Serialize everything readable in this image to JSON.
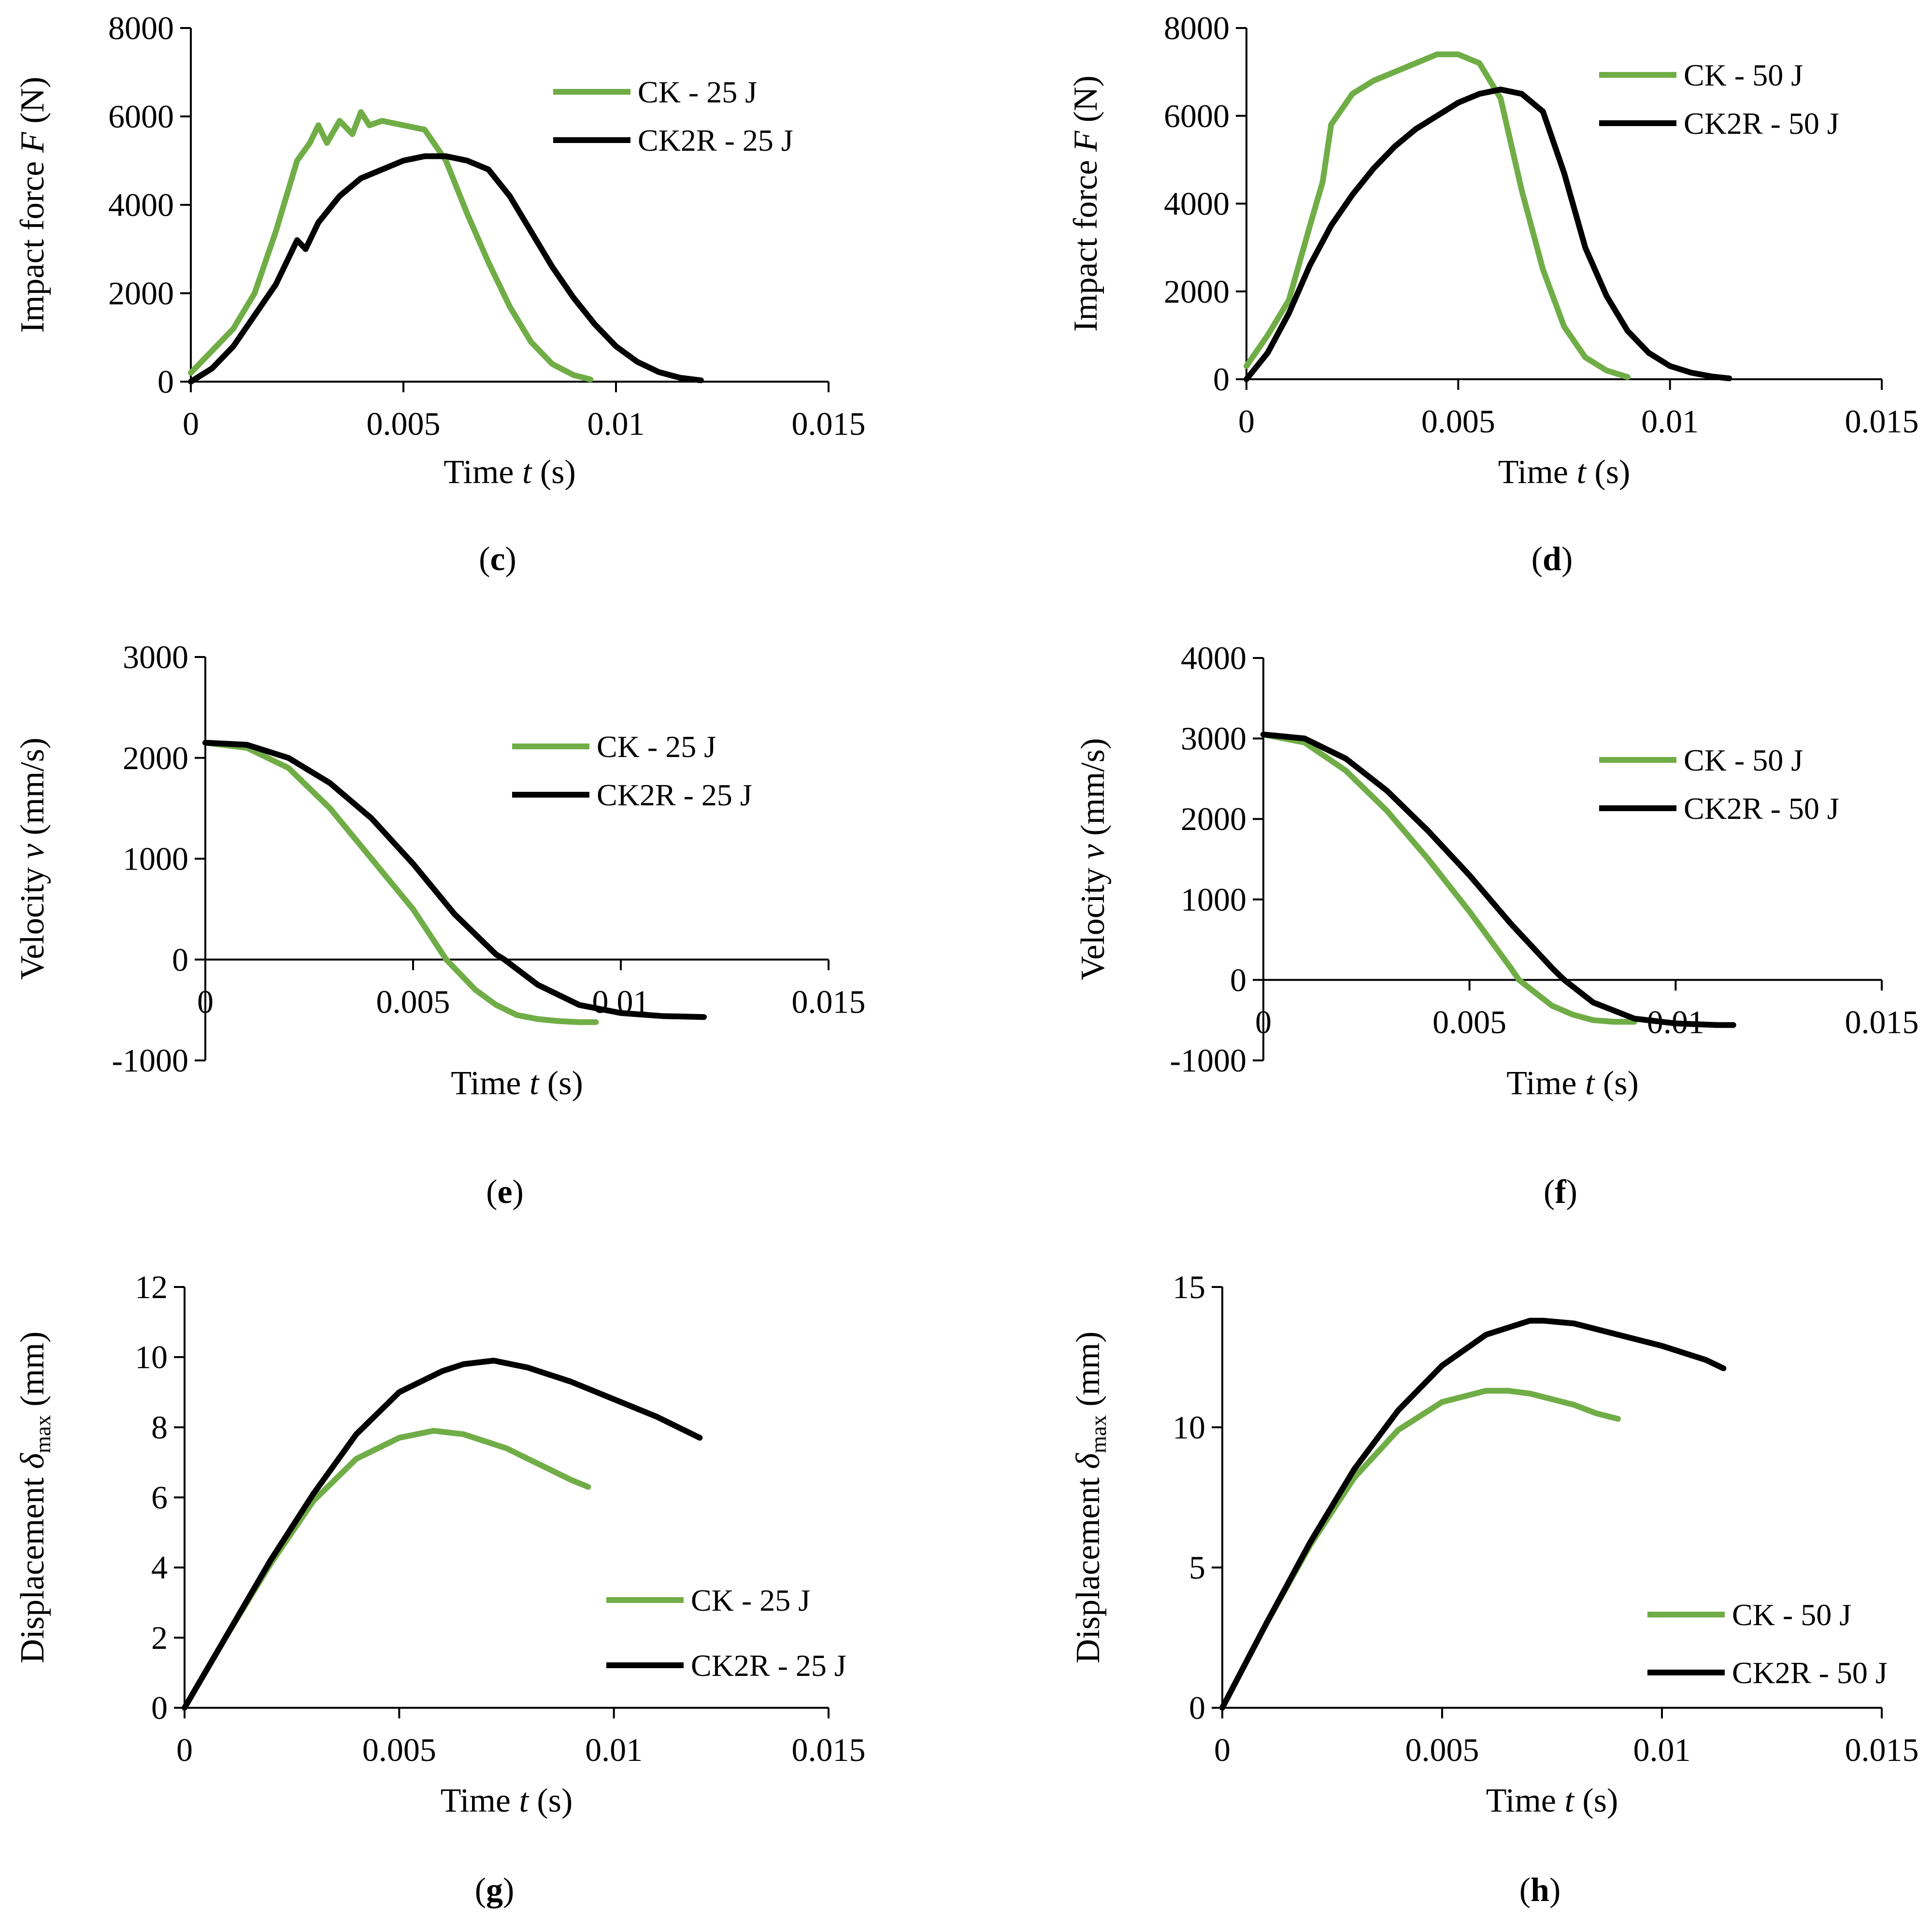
{
  "colors": {
    "green": "#70AD47",
    "black": "#000000"
  },
  "chart_data": [
    {
      "panel": "c",
      "type": "line",
      "xlabel": "Time t (s)",
      "ylabel": "Impact force F (N)",
      "xlim": [
        0,
        0.015
      ],
      "ylim": [
        0,
        8000
      ],
      "xticks": [
        0,
        0.005,
        0.01,
        0.015
      ],
      "xtick_labels": [
        "0",
        "0.005",
        "0.01",
        "0.015"
      ],
      "yticks": [
        0,
        2000,
        4000,
        6000,
        8000
      ],
      "ytick_labels": [
        "0",
        "2000",
        "4000",
        "6000",
        "8000"
      ],
      "legend_position": "top-right",
      "series": [
        {
          "name": "CK - 25 J",
          "color": "green",
          "x": [
            0,
            0.0005,
            0.001,
            0.0015,
            0.002,
            0.0025,
            0.0028,
            0.003,
            0.0032,
            0.0035,
            0.0038,
            0.004,
            0.0042,
            0.0045,
            0.005,
            0.0055,
            0.006,
            0.0065,
            0.007,
            0.0075,
            0.008,
            0.0085,
            0.009,
            0.0094
          ],
          "y": [
            200,
            700,
            1200,
            2000,
            3400,
            5000,
            5400,
            5800,
            5400,
            5900,
            5600,
            6100,
            5800,
            5900,
            5800,
            5700,
            5000,
            3800,
            2700,
            1700,
            900,
            400,
            150,
            50
          ]
        },
        {
          "name": "CK2R - 25 J",
          "color": "black",
          "x": [
            0,
            0.0005,
            0.001,
            0.0015,
            0.002,
            0.0025,
            0.0027,
            0.003,
            0.0035,
            0.004,
            0.0045,
            0.005,
            0.0055,
            0.006,
            0.0065,
            0.007,
            0.0075,
            0.008,
            0.0085,
            0.009,
            0.0095,
            0.01,
            0.0105,
            0.011,
            0.0115,
            0.012
          ],
          "y": [
            0,
            300,
            800,
            1500,
            2200,
            3200,
            3000,
            3600,
            4200,
            4600,
            4800,
            5000,
            5100,
            5100,
            5000,
            4800,
            4200,
            3400,
            2600,
            1900,
            1300,
            800,
            450,
            220,
            90,
            30
          ]
        }
      ]
    },
    {
      "panel": "d",
      "type": "line",
      "xlabel": "Time t (s)",
      "ylabel": "Impact force F (N)",
      "xlim": [
        0,
        0.015
      ],
      "ylim": [
        0,
        8000
      ],
      "xticks": [
        0,
        0.005,
        0.01,
        0.015
      ],
      "xtick_labels": [
        "0",
        "0.005",
        "0.01",
        "0.015"
      ],
      "yticks": [
        0,
        2000,
        4000,
        6000,
        8000
      ],
      "ytick_labels": [
        "0",
        "2000",
        "4000",
        "6000",
        "8000"
      ],
      "legend_position": "top-right",
      "series": [
        {
          "name": "CK - 50 J",
          "color": "green",
          "x": [
            0,
            0.0005,
            0.001,
            0.0015,
            0.0018,
            0.002,
            0.0025,
            0.003,
            0.0035,
            0.004,
            0.0045,
            0.005,
            0.0055,
            0.006,
            0.0065,
            0.007,
            0.0075,
            0.008,
            0.0085,
            0.009
          ],
          "y": [
            300,
            1000,
            1800,
            3500,
            4500,
            5800,
            6500,
            6800,
            7000,
            7200,
            7400,
            7400,
            7200,
            6400,
            4300,
            2500,
            1200,
            500,
            200,
            50
          ]
        },
        {
          "name": "CK2R - 50 J",
          "color": "black",
          "x": [
            0,
            0.0005,
            0.001,
            0.0015,
            0.002,
            0.0025,
            0.003,
            0.0035,
            0.004,
            0.0045,
            0.005,
            0.0055,
            0.006,
            0.0065,
            0.007,
            0.0075,
            0.008,
            0.0085,
            0.009,
            0.0095,
            0.01,
            0.0105,
            0.011,
            0.0114
          ],
          "y": [
            0,
            600,
            1500,
            2600,
            3500,
            4200,
            4800,
            5300,
            5700,
            6000,
            6300,
            6500,
            6600,
            6500,
            6100,
            4700,
            3000,
            1900,
            1100,
            600,
            300,
            150,
            60,
            20
          ]
        }
      ]
    },
    {
      "panel": "e",
      "type": "line",
      "xlabel": "Time t (s)",
      "ylabel": "Velocity v (mm/s)",
      "xlim": [
        0,
        0.015
      ],
      "ylim": [
        -1000,
        3000
      ],
      "xticks": [
        0,
        0.005,
        0.01,
        0.015
      ],
      "xtick_labels": [
        "0",
        "0.005",
        "0.01",
        "0.015"
      ],
      "yticks": [
        -1000,
        0,
        1000,
        2000,
        3000
      ],
      "ytick_labels": [
        "-1000",
        "0",
        "1000",
        "2000",
        "3000"
      ],
      "legend_position": "top-right",
      "series": [
        {
          "name": "CK - 25 J",
          "color": "green",
          "x": [
            0,
            0.001,
            0.002,
            0.003,
            0.004,
            0.005,
            0.0058,
            0.0065,
            0.007,
            0.0075,
            0.008,
            0.0085,
            0.009,
            0.0094
          ],
          "y": [
            2150,
            2100,
            1900,
            1500,
            1000,
            500,
            0,
            -300,
            -450,
            -550,
            -590,
            -610,
            -620,
            -620
          ]
        },
        {
          "name": "CK2R - 25 J",
          "color": "black",
          "x": [
            0,
            0.001,
            0.002,
            0.003,
            0.004,
            0.005,
            0.006,
            0.007,
            0.0072,
            0.008,
            0.009,
            0.01,
            0.011,
            0.012
          ],
          "y": [
            2150,
            2130,
            2000,
            1750,
            1400,
            950,
            450,
            50,
            0,
            -250,
            -450,
            -530,
            -560,
            -570
          ]
        }
      ]
    },
    {
      "panel": "f",
      "type": "line",
      "xlabel": "Time t (s)",
      "ylabel": "Velocity v (mm/s)",
      "xlim": [
        0,
        0.015
      ],
      "ylim": [
        -1000,
        4000
      ],
      "xticks": [
        0,
        0.005,
        0.01,
        0.015
      ],
      "xtick_labels": [
        "0",
        "0.005",
        "0.01",
        "0.015"
      ],
      "yticks": [
        -1000,
        0,
        1000,
        2000,
        3000,
        4000
      ],
      "ytick_labels": [
        "-1000",
        "0",
        "1000",
        "2000",
        "3000",
        "4000"
      ],
      "legend_position": "right",
      "series": [
        {
          "name": "CK - 50 J",
          "color": "green",
          "x": [
            0,
            0.001,
            0.002,
            0.003,
            0.004,
            0.005,
            0.006,
            0.0062,
            0.007,
            0.0075,
            0.008,
            0.0085,
            0.009
          ],
          "y": [
            3050,
            2950,
            2600,
            2100,
            1500,
            850,
            150,
            0,
            -320,
            -430,
            -500,
            -520,
            -520
          ]
        },
        {
          "name": "CK2R - 50 J",
          "color": "black",
          "x": [
            0,
            0.001,
            0.002,
            0.003,
            0.004,
            0.005,
            0.006,
            0.007,
            0.0073,
            0.008,
            0.009,
            0.01,
            0.011,
            0.0114
          ],
          "y": [
            3050,
            3000,
            2750,
            2350,
            1850,
            1300,
            700,
            150,
            0,
            -280,
            -480,
            -540,
            -560,
            -560
          ]
        }
      ]
    },
    {
      "panel": "g",
      "type": "line",
      "xlabel": "Time t (s)",
      "ylabel": "Displacement δmax (mm)",
      "xlim": [
        0,
        0.015
      ],
      "ylim": [
        0,
        12
      ],
      "xticks": [
        0,
        0.005,
        0.01,
        0.015
      ],
      "xtick_labels": [
        "0",
        "0.005",
        "0.01",
        "0.015"
      ],
      "yticks": [
        0,
        2,
        4,
        6,
        8,
        10,
        12
      ],
      "ytick_labels": [
        "0",
        "2",
        "4",
        "6",
        "8",
        "10",
        "12"
      ],
      "legend_position": "bottom-right",
      "series": [
        {
          "name": "CK - 25 J",
          "color": "green",
          "x": [
            0,
            0.001,
            0.002,
            0.003,
            0.004,
            0.005,
            0.0058,
            0.0065,
            0.007,
            0.0075,
            0.008,
            0.0085,
            0.009,
            0.0094
          ],
          "y": [
            0,
            2.1,
            4.1,
            5.9,
            7.1,
            7.7,
            7.9,
            7.8,
            7.6,
            7.4,
            7.1,
            6.8,
            6.5,
            6.3
          ]
        },
        {
          "name": "CK2R - 25 J",
          "color": "black",
          "x": [
            0,
            0.001,
            0.002,
            0.003,
            0.004,
            0.005,
            0.006,
            0.0065,
            0.0072,
            0.008,
            0.009,
            0.01,
            0.011,
            0.012
          ],
          "y": [
            0,
            2.1,
            4.2,
            6.1,
            7.8,
            9.0,
            9.6,
            9.8,
            9.9,
            9.7,
            9.3,
            8.8,
            8.3,
            7.7
          ]
        }
      ]
    },
    {
      "panel": "h",
      "type": "line",
      "xlabel": "Time t (s)",
      "ylabel": "Displacement δmax (mm)",
      "xlim": [
        0,
        0.015
      ],
      "ylim": [
        0,
        15
      ],
      "xticks": [
        0,
        0.005,
        0.01,
        0.015
      ],
      "xtick_labels": [
        "0",
        "0.005",
        "0.01",
        "0.015"
      ],
      "yticks": [
        0,
        5,
        10,
        15
      ],
      "ytick_labels": [
        "0",
        "5",
        "10",
        "15"
      ],
      "legend_position": "bottom-right",
      "series": [
        {
          "name": "CK - 50 J",
          "color": "green",
          "x": [
            0,
            0.001,
            0.002,
            0.003,
            0.004,
            0.005,
            0.006,
            0.0065,
            0.007,
            0.0075,
            0.008,
            0.0085,
            0.009
          ],
          "y": [
            0,
            3.0,
            5.8,
            8.2,
            9.9,
            10.9,
            11.3,
            11.3,
            11.2,
            11.0,
            10.8,
            10.5,
            10.3
          ]
        },
        {
          "name": "CK2R - 50 J",
          "color": "black",
          "x": [
            0,
            0.001,
            0.002,
            0.003,
            0.004,
            0.005,
            0.006,
            0.007,
            0.0073,
            0.008,
            0.009,
            0.01,
            0.011,
            0.0114
          ],
          "y": [
            0,
            3.0,
            5.9,
            8.5,
            10.6,
            12.2,
            13.3,
            13.8,
            13.8,
            13.7,
            13.3,
            12.9,
            12.4,
            12.1
          ]
        }
      ]
    }
  ]
}
